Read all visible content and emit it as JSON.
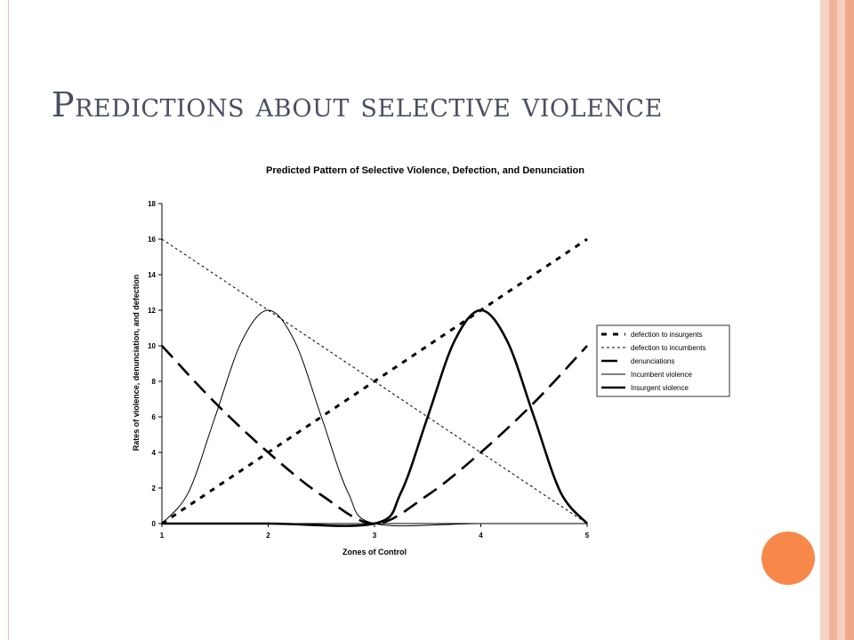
{
  "slide": {
    "title": "Predictions about selective violence"
  },
  "theme": {
    "accent_circle": "#f7884a",
    "band_colors": [
      "#f6d3c4",
      "#f2b49a",
      "#f6cfbf",
      "#f0a88c"
    ],
    "border_color": "#e9c3b4",
    "title_color": "#4a4f63"
  },
  "chart_data": {
    "type": "line",
    "title": "Predicted Pattern of Selective Violence, Defection, and Denunciation",
    "xlabel": "Zones of Control",
    "ylabel": "Rates of violence, denunciation, and defection",
    "x_ticks": [
      1,
      2,
      3,
      4,
      5
    ],
    "y_ticks": [
      0,
      2,
      4,
      6,
      8,
      10,
      12,
      14,
      16,
      18
    ],
    "xlim": [
      1,
      5
    ],
    "ylim": [
      0,
      18
    ],
    "grid": false,
    "legend_position": "right",
    "series": [
      {
        "name": "defection to insurgents",
        "style": "short-dash-thick",
        "x": [
          1,
          2,
          3,
          4,
          5
        ],
        "y": [
          0,
          4,
          8,
          12,
          16
        ]
      },
      {
        "name": "defection to incumbents",
        "style": "dotted-thin",
        "x": [
          1,
          2,
          3,
          4,
          5
        ],
        "y": [
          16,
          12,
          8,
          4,
          0
        ]
      },
      {
        "name": "denunciations",
        "style": "long-dash-thick",
        "x": [
          1,
          1.5,
          2,
          2.5,
          3,
          3.5,
          4,
          4.5,
          5
        ],
        "y": [
          10,
          6.8,
          4,
          1.6,
          0,
          1.6,
          4,
          6.8,
          10
        ]
      },
      {
        "name": "Incumbent violence",
        "style": "solid-thin",
        "x": [
          1,
          1.25,
          1.5,
          1.75,
          2,
          2.25,
          2.5,
          2.75,
          3,
          4,
          5
        ],
        "y": [
          0,
          1.76,
          6,
          10.24,
          12,
          10.24,
          6,
          1.76,
          0,
          0,
          0
        ]
      },
      {
        "name": "Insurgent violence",
        "style": "solid-thick",
        "x": [
          1,
          2,
          3,
          3.25,
          3.5,
          3.75,
          4,
          4.25,
          4.5,
          4.75,
          5
        ],
        "y": [
          0,
          0,
          0,
          1.76,
          6,
          10.24,
          12,
          10.24,
          6,
          1.76,
          0
        ]
      }
    ]
  }
}
